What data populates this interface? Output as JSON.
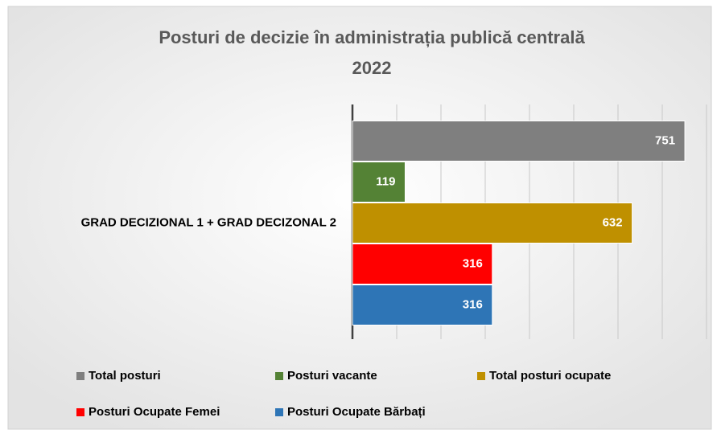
{
  "chart_data": {
    "type": "bar",
    "orientation": "horizontal",
    "title": [
      "Posturi de decizie în administrația publică centrală",
      "2022"
    ],
    "categories": [
      "GRAD DECIZIONAL 1 + GRAD DECIZONAL 2"
    ],
    "series": [
      {
        "name": "Total posturi",
        "color": "#7f7f7f",
        "values": [
          751
        ]
      },
      {
        "name": "Posturi vacante",
        "color": "#548235",
        "values": [
          119
        ]
      },
      {
        "name": "Total posturi ocupate",
        "color": "#bf9000",
        "values": [
          632
        ]
      },
      {
        "name": "Posturi Ocupate Femei",
        "color": "#ff0000",
        "values": [
          316
        ]
      },
      {
        "name": "Posturi Ocupate Bărbați",
        "color": "#2e75b6",
        "values": [
          316
        ]
      }
    ],
    "xlim": [
      0,
      800
    ],
    "xticks": [
      0,
      100,
      200,
      300,
      400,
      500,
      600,
      700,
      800
    ],
    "grid": true,
    "legend": "bottom"
  }
}
